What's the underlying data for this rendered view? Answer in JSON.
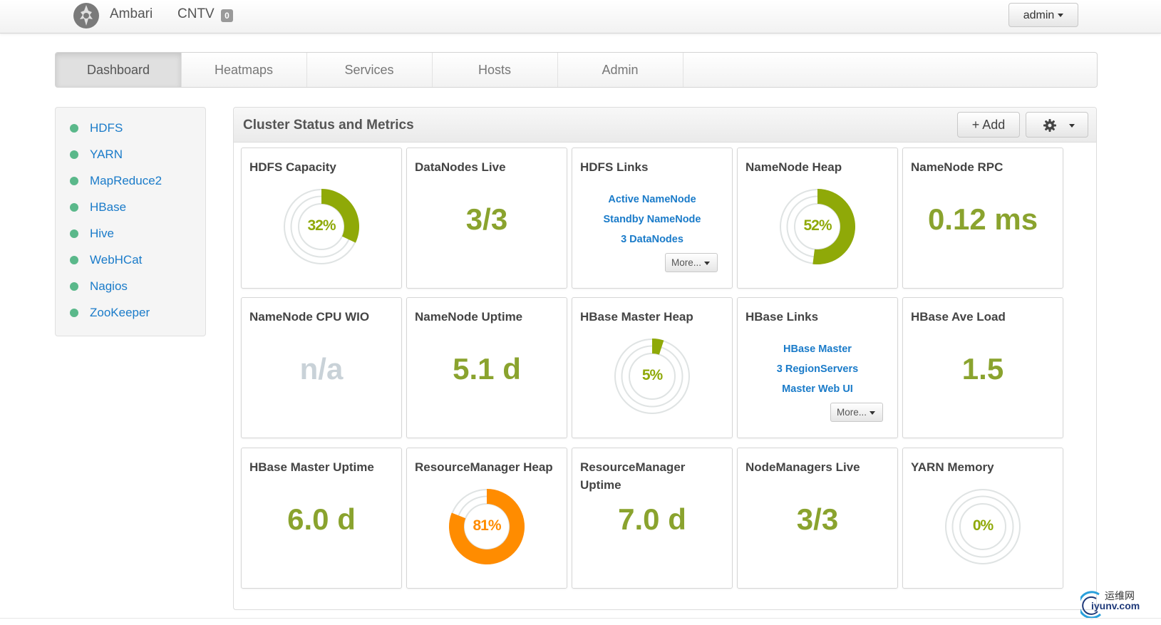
{
  "navbar": {
    "brand": "Ambari",
    "cluster_name": "CNTV",
    "cluster_badge": "0",
    "user_menu": "admin"
  },
  "main_nav": {
    "tabs": [
      {
        "label": "Dashboard",
        "active": true
      },
      {
        "label": "Heatmaps",
        "active": false
      },
      {
        "label": "Services",
        "active": false
      },
      {
        "label": "Hosts",
        "active": false
      },
      {
        "label": "Admin",
        "active": false
      }
    ]
  },
  "sidebar": {
    "services": [
      {
        "label": "HDFS",
        "status": "ok"
      },
      {
        "label": "YARN",
        "status": "ok"
      },
      {
        "label": "MapReduce2",
        "status": "ok"
      },
      {
        "label": "HBase",
        "status": "ok"
      },
      {
        "label": "Hive",
        "status": "ok"
      },
      {
        "label": "WebHCat",
        "status": "ok"
      },
      {
        "label": "Nagios",
        "status": "ok"
      },
      {
        "label": "ZooKeeper",
        "status": "ok"
      }
    ]
  },
  "panel": {
    "title": "Cluster Status and Metrics",
    "add_label": "Add",
    "settings_icon": "gear-icon"
  },
  "widgets": [
    {
      "title": "HDFS Capacity",
      "type": "donut",
      "percent": 32,
      "label": "32%",
      "color": "#8fa908"
    },
    {
      "title": "DataNodes Live",
      "type": "value",
      "value": "3/3"
    },
    {
      "title": "HDFS Links",
      "type": "links",
      "links": [
        "Active NameNode",
        "Standby NameNode",
        "3 DataNodes"
      ],
      "more": "More..."
    },
    {
      "title": "NameNode Heap",
      "type": "donut",
      "percent": 52,
      "label": "52%",
      "color": "#8fa908"
    },
    {
      "title": "NameNode RPC",
      "type": "value",
      "value": "0.12 ms"
    },
    {
      "title": "NameNode CPU WIO",
      "type": "value",
      "value": "n/a",
      "na": true
    },
    {
      "title": "NameNode Uptime",
      "type": "value",
      "value": "5.1 d"
    },
    {
      "title": "HBase Master Heap",
      "type": "donut",
      "percent": 5,
      "label": "5%",
      "color": "#8fa908"
    },
    {
      "title": "HBase Links",
      "type": "links",
      "links": [
        "HBase Master",
        "3 RegionServers",
        "Master Web UI"
      ],
      "more": "More..."
    },
    {
      "title": "HBase Ave Load",
      "type": "value",
      "value": "1.5"
    },
    {
      "title": "HBase Master Uptime",
      "type": "value",
      "value": "6.0 d"
    },
    {
      "title": "ResourceManager Heap",
      "type": "donut",
      "percent": 81,
      "label": "81%",
      "color": "#ff8c00"
    },
    {
      "title": "ResourceManager Uptime",
      "type": "value",
      "value": "7.0 d"
    },
    {
      "title": "NodeManagers Live",
      "type": "value",
      "value": "3/3"
    },
    {
      "title": "YARN Memory",
      "type": "donut",
      "percent": 0,
      "label": "0%",
      "color": "#8fa908"
    }
  ],
  "watermark": {
    "cn": "运维网",
    "en": "iyunv.com"
  }
}
